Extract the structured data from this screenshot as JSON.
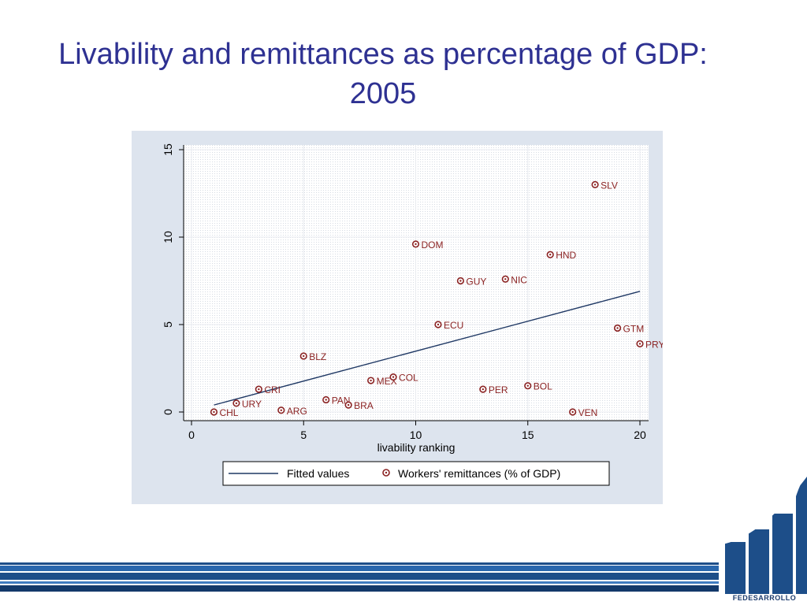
{
  "slide": {
    "title": "Livability and remittances as percentage of GDP: 2005",
    "brand": "FEDESARROLLO"
  },
  "colors": {
    "title": "#2e3192",
    "fit_line": "#1f3864",
    "marker": "#8b2323",
    "panel": "#dde4ee",
    "brand_blue": "#1d4e89"
  },
  "chart_data": {
    "type": "scatter",
    "title": "",
    "xlabel": "livability ranking",
    "ylabel": "",
    "xlim": [
      0,
      20
    ],
    "ylim": [
      0,
      15
    ],
    "x_ticks": [
      0,
      5,
      10,
      15,
      20
    ],
    "y_ticks": [
      0,
      5,
      10,
      15
    ],
    "grid": true,
    "legend_position": "bottom",
    "series": [
      {
        "name": "Workers' remittances (% of GDP)",
        "kind": "scatter",
        "points": [
          {
            "label": "CHL",
            "x": 1,
            "y": 0.0
          },
          {
            "label": "URY",
            "x": 2,
            "y": 0.5
          },
          {
            "label": "CRI",
            "x": 3,
            "y": 1.3
          },
          {
            "label": "ARG",
            "x": 4,
            "y": 0.1
          },
          {
            "label": "BLZ",
            "x": 5,
            "y": 3.2
          },
          {
            "label": "PAN",
            "x": 6,
            "y": 0.7
          },
          {
            "label": "BRA",
            "x": 7,
            "y": 0.4
          },
          {
            "label": "MEX",
            "x": 8,
            "y": 1.8
          },
          {
            "label": "COL",
            "x": 9,
            "y": 2.0
          },
          {
            "label": "DOM",
            "x": 10,
            "y": 9.6
          },
          {
            "label": "ECU",
            "x": 11,
            "y": 5.0
          },
          {
            "label": "GUY",
            "x": 12,
            "y": 7.5
          },
          {
            "label": "PER",
            "x": 13,
            "y": 1.3
          },
          {
            "label": "NIC",
            "x": 14,
            "y": 7.6
          },
          {
            "label": "BOL",
            "x": 15,
            "y": 1.5
          },
          {
            "label": "HND",
            "x": 16,
            "y": 9.0
          },
          {
            "label": "VEN",
            "x": 17,
            "y": 0.0
          },
          {
            "label": "SLV",
            "x": 18,
            "y": 13.0
          },
          {
            "label": "GTM",
            "x": 19,
            "y": 4.8
          },
          {
            "label": "PRY",
            "x": 20,
            "y": 3.9
          }
        ]
      },
      {
        "name": "Fitted values",
        "kind": "line",
        "points": [
          {
            "x": 1,
            "y": 0.4
          },
          {
            "x": 20,
            "y": 6.9
          }
        ]
      }
    ]
  }
}
